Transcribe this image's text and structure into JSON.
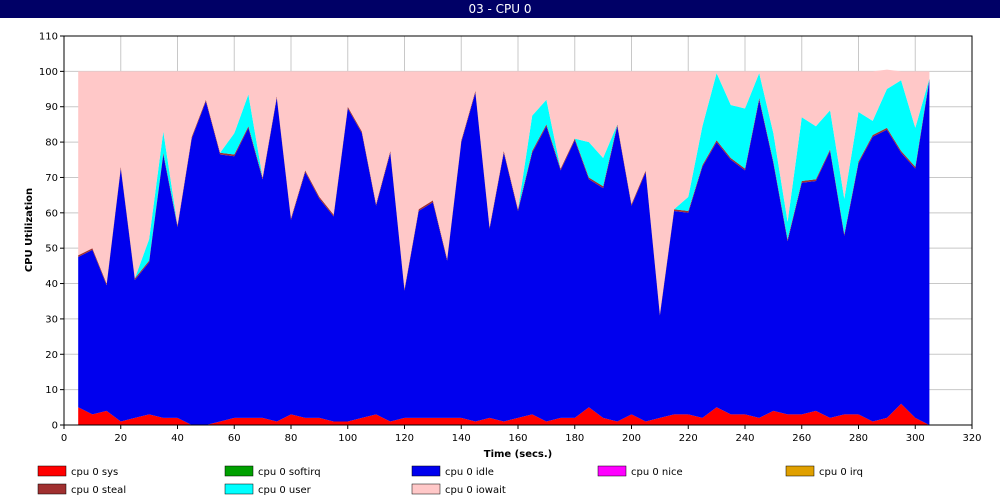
{
  "window": {
    "title": "03 - CPU 0"
  },
  "chart_data": {
    "type": "area",
    "stacked": true,
    "xlabel": "Time (secs.)",
    "ylabel": "CPU Utilization",
    "xlim": [
      0,
      320
    ],
    "ylim": [
      0,
      110
    ],
    "xticks": [
      0,
      20,
      40,
      60,
      80,
      100,
      120,
      140,
      160,
      180,
      200,
      220,
      240,
      260,
      280,
      300,
      320
    ],
    "yticks": [
      0,
      10,
      20,
      30,
      40,
      50,
      60,
      70,
      80,
      90,
      100,
      110
    ],
    "grid": true,
    "legend_position": "bottom",
    "x": [
      5,
      10,
      15,
      20,
      25,
      30,
      35,
      40,
      45,
      50,
      55,
      60,
      65,
      70,
      75,
      80,
      85,
      90,
      95,
      100,
      105,
      110,
      115,
      120,
      125,
      130,
      135,
      140,
      145,
      150,
      155,
      160,
      165,
      170,
      175,
      180,
      185,
      190,
      195,
      200,
      205,
      210,
      215,
      220,
      225,
      230,
      235,
      240,
      245,
      250,
      255,
      260,
      265,
      270,
      275,
      280,
      285,
      290,
      295,
      300,
      305
    ],
    "series": [
      {
        "name": "cpu 0 sys",
        "color": "#ff0000",
        "values": [
          5,
          3,
          4,
          1,
          2,
          3,
          2,
          2,
          0,
          0,
          1,
          2,
          2,
          2,
          1,
          3,
          2,
          2,
          1,
          1,
          2,
          3,
          1,
          2,
          2,
          2,
          2,
          2,
          1,
          2,
          1,
          2,
          3,
          1,
          2,
          2,
          5,
          2,
          1,
          3,
          1,
          2,
          3,
          3,
          2,
          5,
          3,
          3,
          2,
          4,
          3,
          3,
          4,
          2,
          3,
          3,
          1,
          2,
          6,
          2,
          0
        ]
      },
      {
        "name": "cpu 0 softirq",
        "color": "#00a000",
        "values": [
          0,
          0,
          0,
          0,
          0,
          0,
          0,
          0,
          0,
          0,
          0,
          0,
          0,
          0,
          0,
          0,
          0,
          0,
          0,
          0,
          0,
          0,
          0,
          0,
          0,
          0,
          0,
          0,
          0,
          0,
          0,
          0,
          0,
          0,
          0,
          0,
          0,
          0,
          0,
          0,
          0,
          0,
          0,
          0,
          0,
          0,
          0,
          0,
          0,
          0,
          0,
          0,
          0,
          0,
          0,
          0,
          0,
          0,
          0,
          0,
          0
        ]
      },
      {
        "name": "cpu 0 idle",
        "color": "#0000ee",
        "values": [
          42.5,
          46.5,
          35.5,
          71.5,
          39,
          43,
          74.5,
          54,
          81,
          91.5,
          75.5,
          74,
          82,
          67.5,
          91.5,
          55,
          69.5,
          62,
          58,
          88.5,
          80.5,
          59,
          76,
          36,
          58.5,
          61,
          44.5,
          78,
          93,
          53.5,
          76,
          58.5,
          74,
          83.5,
          70,
          78.5,
          64.5,
          65,
          83.5,
          59,
          70.5,
          29,
          57.5,
          57,
          71,
          75,
          72,
          69,
          90,
          70,
          49,
          65.5,
          65,
          75.5,
          50.5,
          71,
          80.5,
          81.5,
          71,
          70.5,
          97.5
        ]
      },
      {
        "name": "cpu 0 nice",
        "color": "#ff00ff",
        "values": [
          0,
          0,
          0,
          0,
          0,
          0,
          0,
          0,
          0,
          0,
          0,
          0,
          0,
          0,
          0,
          0,
          0,
          0,
          0,
          0,
          0,
          0,
          0,
          0,
          0,
          0,
          0,
          0,
          0,
          0,
          0,
          0,
          0,
          0,
          0,
          0,
          0,
          0,
          0,
          0,
          0,
          0,
          0,
          0,
          0,
          0,
          0,
          0,
          0,
          0,
          0,
          0,
          0,
          0,
          0,
          0,
          0,
          0,
          0,
          0,
          0
        ]
      },
      {
        "name": "cpu 0 irq",
        "color": "#e0a000",
        "values": [
          0,
          0,
          0,
          0,
          0,
          0,
          0,
          0,
          0,
          0,
          0,
          0,
          0,
          0,
          0,
          0,
          0,
          0,
          0,
          0,
          0,
          0,
          0,
          0,
          0,
          0,
          0,
          0,
          0,
          0,
          0,
          0,
          0,
          0,
          0,
          0,
          0,
          0,
          0,
          0,
          0,
          0,
          0,
          0,
          0,
          0,
          0,
          0,
          0,
          0,
          0,
          0,
          0,
          0,
          0,
          0,
          0,
          0,
          0,
          0,
          0
        ]
      },
      {
        "name": "cpu 0 steal",
        "color": "#a03030",
        "values": [
          0.5,
          0.5,
          0.5,
          0.5,
          0.5,
          0.5,
          0.5,
          0.5,
          0.5,
          0.5,
          0.5,
          0.5,
          0.5,
          0.5,
          0.5,
          0.5,
          0.5,
          0.5,
          0.5,
          0.5,
          0.5,
          0.5,
          0.5,
          0.5,
          0.5,
          0.5,
          0.5,
          0.5,
          0.5,
          0.5,
          0.5,
          0.5,
          0.5,
          0.5,
          0.5,
          0.5,
          0.5,
          0.5,
          0.5,
          0.5,
          0.5,
          0.5,
          0.5,
          0.5,
          0.5,
          0.5,
          0.5,
          0.5,
          0.5,
          0.5,
          0.5,
          0.5,
          0.5,
          0.5,
          0.5,
          0.5,
          0.5,
          0.5,
          0.5,
          0.5,
          0.5
        ]
      },
      {
        "name": "cpu 0 user",
        "color": "#00ffff",
        "values": [
          0,
          0,
          0,
          0,
          0,
          6,
          6,
          0,
          0,
          0,
          0,
          6,
          9,
          0,
          0,
          0,
          0,
          0,
          0,
          0,
          0,
          0,
          0,
          0,
          0,
          0,
          0,
          0,
          0,
          0,
          0,
          0,
          10,
          7,
          0,
          0,
          10,
          8,
          0,
          0,
          0,
          0,
          0,
          4,
          11,
          19,
          15,
          17,
          7,
          8,
          5,
          18,
          15,
          11,
          10,
          14,
          4,
          11,
          20,
          11,
          0
        ]
      },
      {
        "name": "cpu 0 iowait",
        "color": "#ffc8c8",
        "values": [
          52,
          50,
          60,
          27,
          58.5,
          47.5,
          17,
          43.5,
          18.5,
          8,
          23,
          17.5,
          6.5,
          30,
          7,
          41.5,
          28,
          35.5,
          40.5,
          10,
          17,
          37.5,
          22.5,
          61.5,
          39,
          36.5,
          53,
          19.5,
          5.5,
          44,
          22.5,
          39,
          12.5,
          8,
          27.5,
          19,
          20,
          24.5,
          15,
          37.5,
          28,
          68.5,
          39,
          35.5,
          15.5,
          0.5,
          9.5,
          10.5,
          0.5,
          17.5,
          42.5,
          13,
          15.5,
          11,
          36,
          11.5,
          14,
          5.5,
          2.5,
          16,
          2
        ]
      }
    ]
  }
}
